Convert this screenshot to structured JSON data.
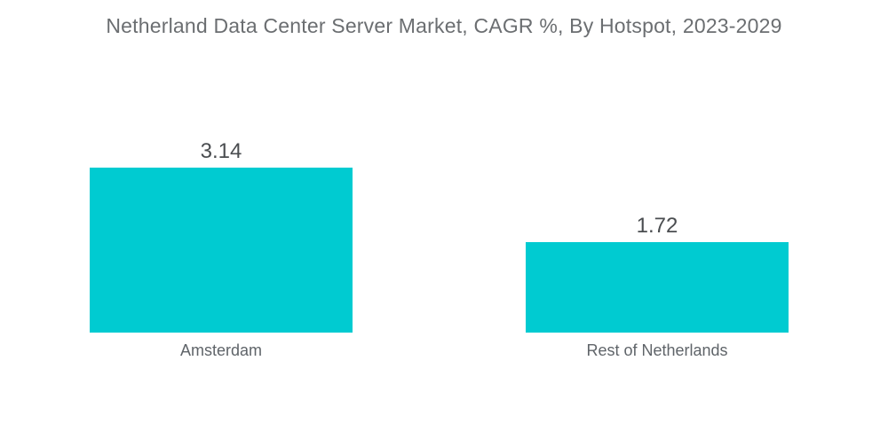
{
  "page": {
    "background": "#ffffff"
  },
  "colors": {
    "bar": "#00cbd1",
    "title_text": "#6b6e71",
    "value_text": "#4a4d50",
    "category_text": "#5f6469"
  },
  "chart_data": {
    "type": "bar",
    "orientation": "vertical",
    "title": "Netherland Data Center Server Market, CAGR %, By Hotspot, 2023-2029",
    "categories": [
      "Amsterdam",
      "Rest of Netherlands"
    ],
    "values": [
      3.14,
      1.72
    ],
    "value_labels": [
      "3.14",
      "1.72"
    ],
    "xlabel": "",
    "ylabel": "",
    "ylim": [
      0,
      3.5
    ],
    "grid": false,
    "legend": false,
    "axes_visible": false,
    "bar_color": "#00cbd1"
  }
}
